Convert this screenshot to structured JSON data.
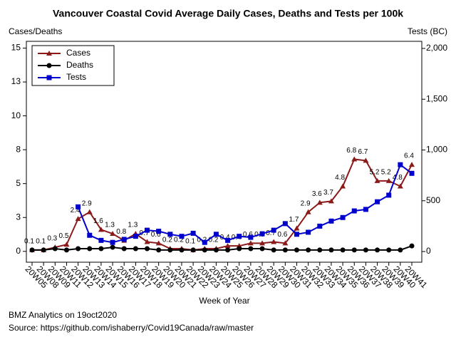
{
  "chart_data": {
    "type": "line",
    "title": "Vancouver Coastal Covid Average Daily Cases, Deaths and Tests per 100k",
    "y_label": "Cases/Deaths",
    "y2_label": "Tests (BC)",
    "x_label": "Week of Year",
    "footer": [
      "BMZ Analytics on 19oct2020",
      "Source: https://github.com/ishaberry/Covid19Canada/raw/master"
    ],
    "categories": [
      "20W05",
      "20W08",
      "20W09",
      "20W11",
      "20W12",
      "20W13",
      "20W14",
      "20W15",
      "20W16",
      "20W17",
      "20W18",
      "20W19",
      "20W20",
      "20W21",
      "20W22",
      "20W23",
      "20W24",
      "20W25",
      "20W26",
      "20W27",
      "20W28",
      "20W29",
      "20W30",
      "20W31",
      "20W32",
      "20W33",
      "20W34",
      "20W35",
      "20W36",
      "20W37",
      "20W38",
      "20W39",
      "20W40",
      "20W41"
    ],
    "series": [
      {
        "name": "Cases",
        "color": "#8b1a1a",
        "marker": "triangle",
        "labels": true,
        "values": [
          0.1,
          0.1,
          0.3,
          0.5,
          2.4,
          2.9,
          1.6,
          1.3,
          0.8,
          1.3,
          0.7,
          0.6,
          0.2,
          0.2,
          0.1,
          0.2,
          0.2,
          0.4,
          0.4,
          0.6,
          0.6,
          0.7,
          0.6,
          1.7,
          2.9,
          3.6,
          3.7,
          4.8,
          6.8,
          6.7,
          5.2,
          5.2,
          4.8,
          6.4
        ]
      },
      {
        "name": "Deaths",
        "color": "#000000",
        "marker": "circle",
        "values": [
          0.1,
          0.1,
          0.2,
          0.1,
          0.2,
          0.2,
          0.2,
          0.3,
          0.2,
          0.2,
          0.2,
          0.1,
          0.1,
          0.1,
          0.1,
          0.1,
          0.1,
          0.1,
          0.2,
          0.2,
          0.2,
          0.1,
          0.1,
          0.1,
          0.1,
          0.1,
          0.1,
          0.1,
          0.1,
          0.1,
          0.1,
          0.1,
          0.1,
          0.4
        ]
      },
      {
        "name": "Tests",
        "color": "#0000cc",
        "marker": "square",
        "axis": "y2",
        "values": [
          null,
          null,
          null,
          null,
          440,
          160,
          110,
          90,
          120,
          150,
          210,
          200,
          170,
          150,
          180,
          90,
          170,
          110,
          150,
          140,
          175,
          210,
          275,
          170,
          190,
          250,
          300,
          335,
          400,
          415,
          490,
          555,
          855,
          770
        ]
      }
    ],
    "ylim": [
      -0.8,
      15.5
    ],
    "yticks": [
      0,
      {
        "value": 2.5,
        "label": "3"
      },
      5,
      {
        "value": 7.5,
        "label": "8"
      },
      10,
      {
        "value": 12.5,
        "label": "13"
      },
      15
    ],
    "y2lim": [
      -105,
      2070
    ],
    "y2ticks": [
      0,
      500,
      {
        "value": 1000,
        "label": "1,000"
      },
      {
        "value": 1500,
        "label": "1,500"
      },
      {
        "value": 2000,
        "label": "2,000"
      }
    ],
    "legend": "top-left"
  }
}
